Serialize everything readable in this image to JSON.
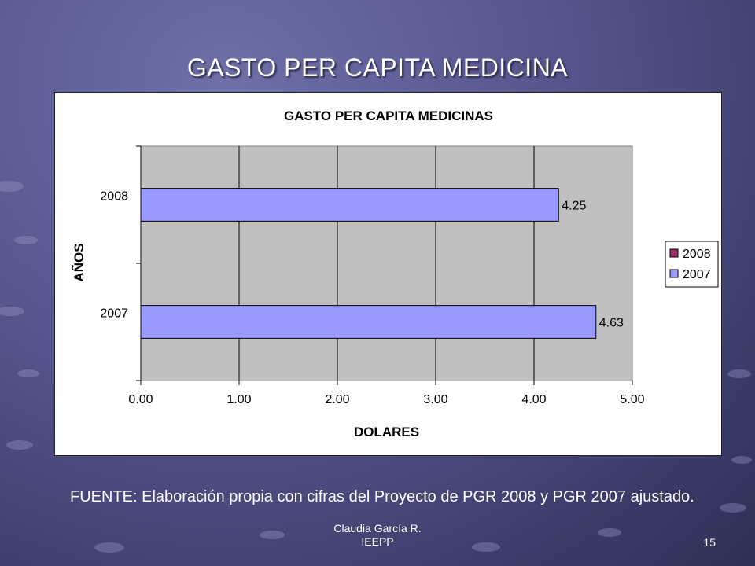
{
  "slide": {
    "title": "GASTO PER CAPITA MEDICINA",
    "source_text": "FUENTE: Elaboración propia con cifras del Proyecto de PGR 2008 y PGR 2007 ajustado.",
    "footer_line1": "Claudia García R.",
    "footer_line2": "IEEPP",
    "page_number": "15"
  },
  "chart_data": {
    "type": "bar",
    "orientation": "horizontal",
    "title": "GASTO PER CAPITA MEDICINAS",
    "xlabel": "DOLARES",
    "ylabel": "AÑOS",
    "categories": [
      "2008",
      "2007"
    ],
    "series": [
      {
        "name": "2008",
        "values": [
          4.25,
          null
        ],
        "color": "#993366"
      },
      {
        "name": "2007",
        "values": [
          null,
          4.63
        ],
        "color": "#9999ff"
      }
    ],
    "bar_color": "#9999ff",
    "data_labels": [
      "4.25",
      "4.63"
    ],
    "xlim": [
      0,
      5
    ],
    "x_ticks": [
      "0.00",
      "1.00",
      "2.00",
      "3.00",
      "4.00",
      "5.00"
    ],
    "grid": true,
    "plot_background": "#c0c0c0",
    "legend_position": "right",
    "legend": [
      {
        "label": "2008",
        "color": "#993366"
      },
      {
        "label": "2007",
        "color": "#9999ff"
      }
    ]
  }
}
